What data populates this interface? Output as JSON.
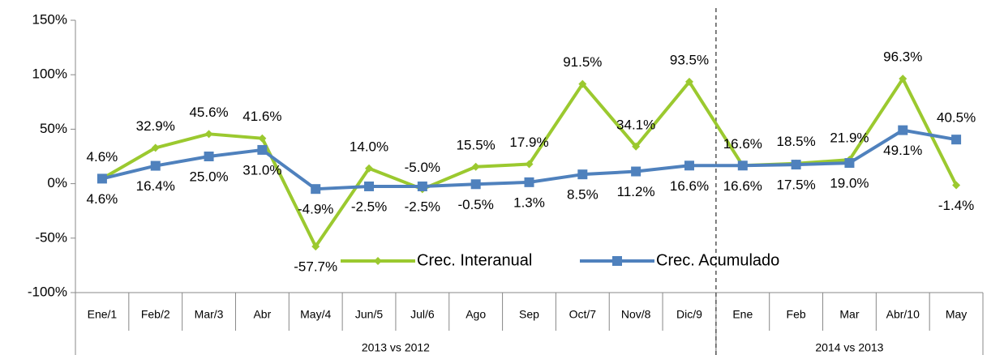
{
  "chart_data": {
    "type": "line",
    "categories": [
      "Ene/1",
      "Feb/2",
      "Mar/3",
      "Abr",
      "May/4",
      "Jun/5",
      "Jul/6",
      "Ago",
      "Sep",
      "Oct/7",
      "Nov/8",
      "Dic/9",
      "Ene",
      "Feb",
      "Mar",
      "Abr/10",
      "May"
    ],
    "groups": [
      {
        "label": "2013 vs 2012",
        "count": 12
      },
      {
        "label": "2014 vs 2013",
        "count": 5
      }
    ],
    "series": [
      {
        "name": "Crec. Interanual",
        "color": "#9bc92f",
        "marker": "diamond",
        "values": [
          4.6,
          32.9,
          45.6,
          41.6,
          -57.7,
          14.0,
          -5.0,
          15.5,
          17.9,
          91.5,
          34.1,
          93.5,
          16.6,
          18.5,
          21.9,
          96.3,
          -1.4
        ],
        "value_labels": [
          "4.6%",
          "32.9%",
          "45.6%",
          "41.6%",
          "-57.7%",
          "14.0%",
          "-5.0%",
          "15.5%",
          "17.9%",
          "91.5%",
          "34.1%",
          "93.5%",
          "16.6%",
          "18.5%",
          "21.9%",
          "96.3%",
          "-1.4%"
        ]
      },
      {
        "name": "Crec. Acumulado",
        "color": "#4f81bd",
        "marker": "square",
        "values": [
          4.6,
          16.4,
          25.0,
          31.0,
          -4.9,
          -2.5,
          -2.5,
          -0.5,
          1.3,
          8.5,
          11.2,
          16.6,
          16.6,
          17.5,
          19.0,
          49.1,
          40.5
        ],
        "value_labels": [
          "4.6%",
          "16.4%",
          "25.0%",
          "31.0%",
          "-4.9%",
          "-2.5%",
          "-2.5%",
          "-0.5%",
          "1.3%",
          "8.5%",
          "11.2%",
          "16.6%",
          "16.6%",
          "17.5%",
          "19.0%",
          "49.1%",
          "40.5%"
        ]
      }
    ],
    "ylim": [
      -100,
      150
    ],
    "yticks": [
      {
        "value": -100,
        "label": "-100%"
      },
      {
        "value": -50,
        "label": "-50%"
      },
      {
        "value": 0,
        "label": "0%"
      },
      {
        "value": 50,
        "label": "50%"
      },
      {
        "value": 100,
        "label": "100%"
      },
      {
        "value": 150,
        "label": "150%"
      }
    ]
  }
}
